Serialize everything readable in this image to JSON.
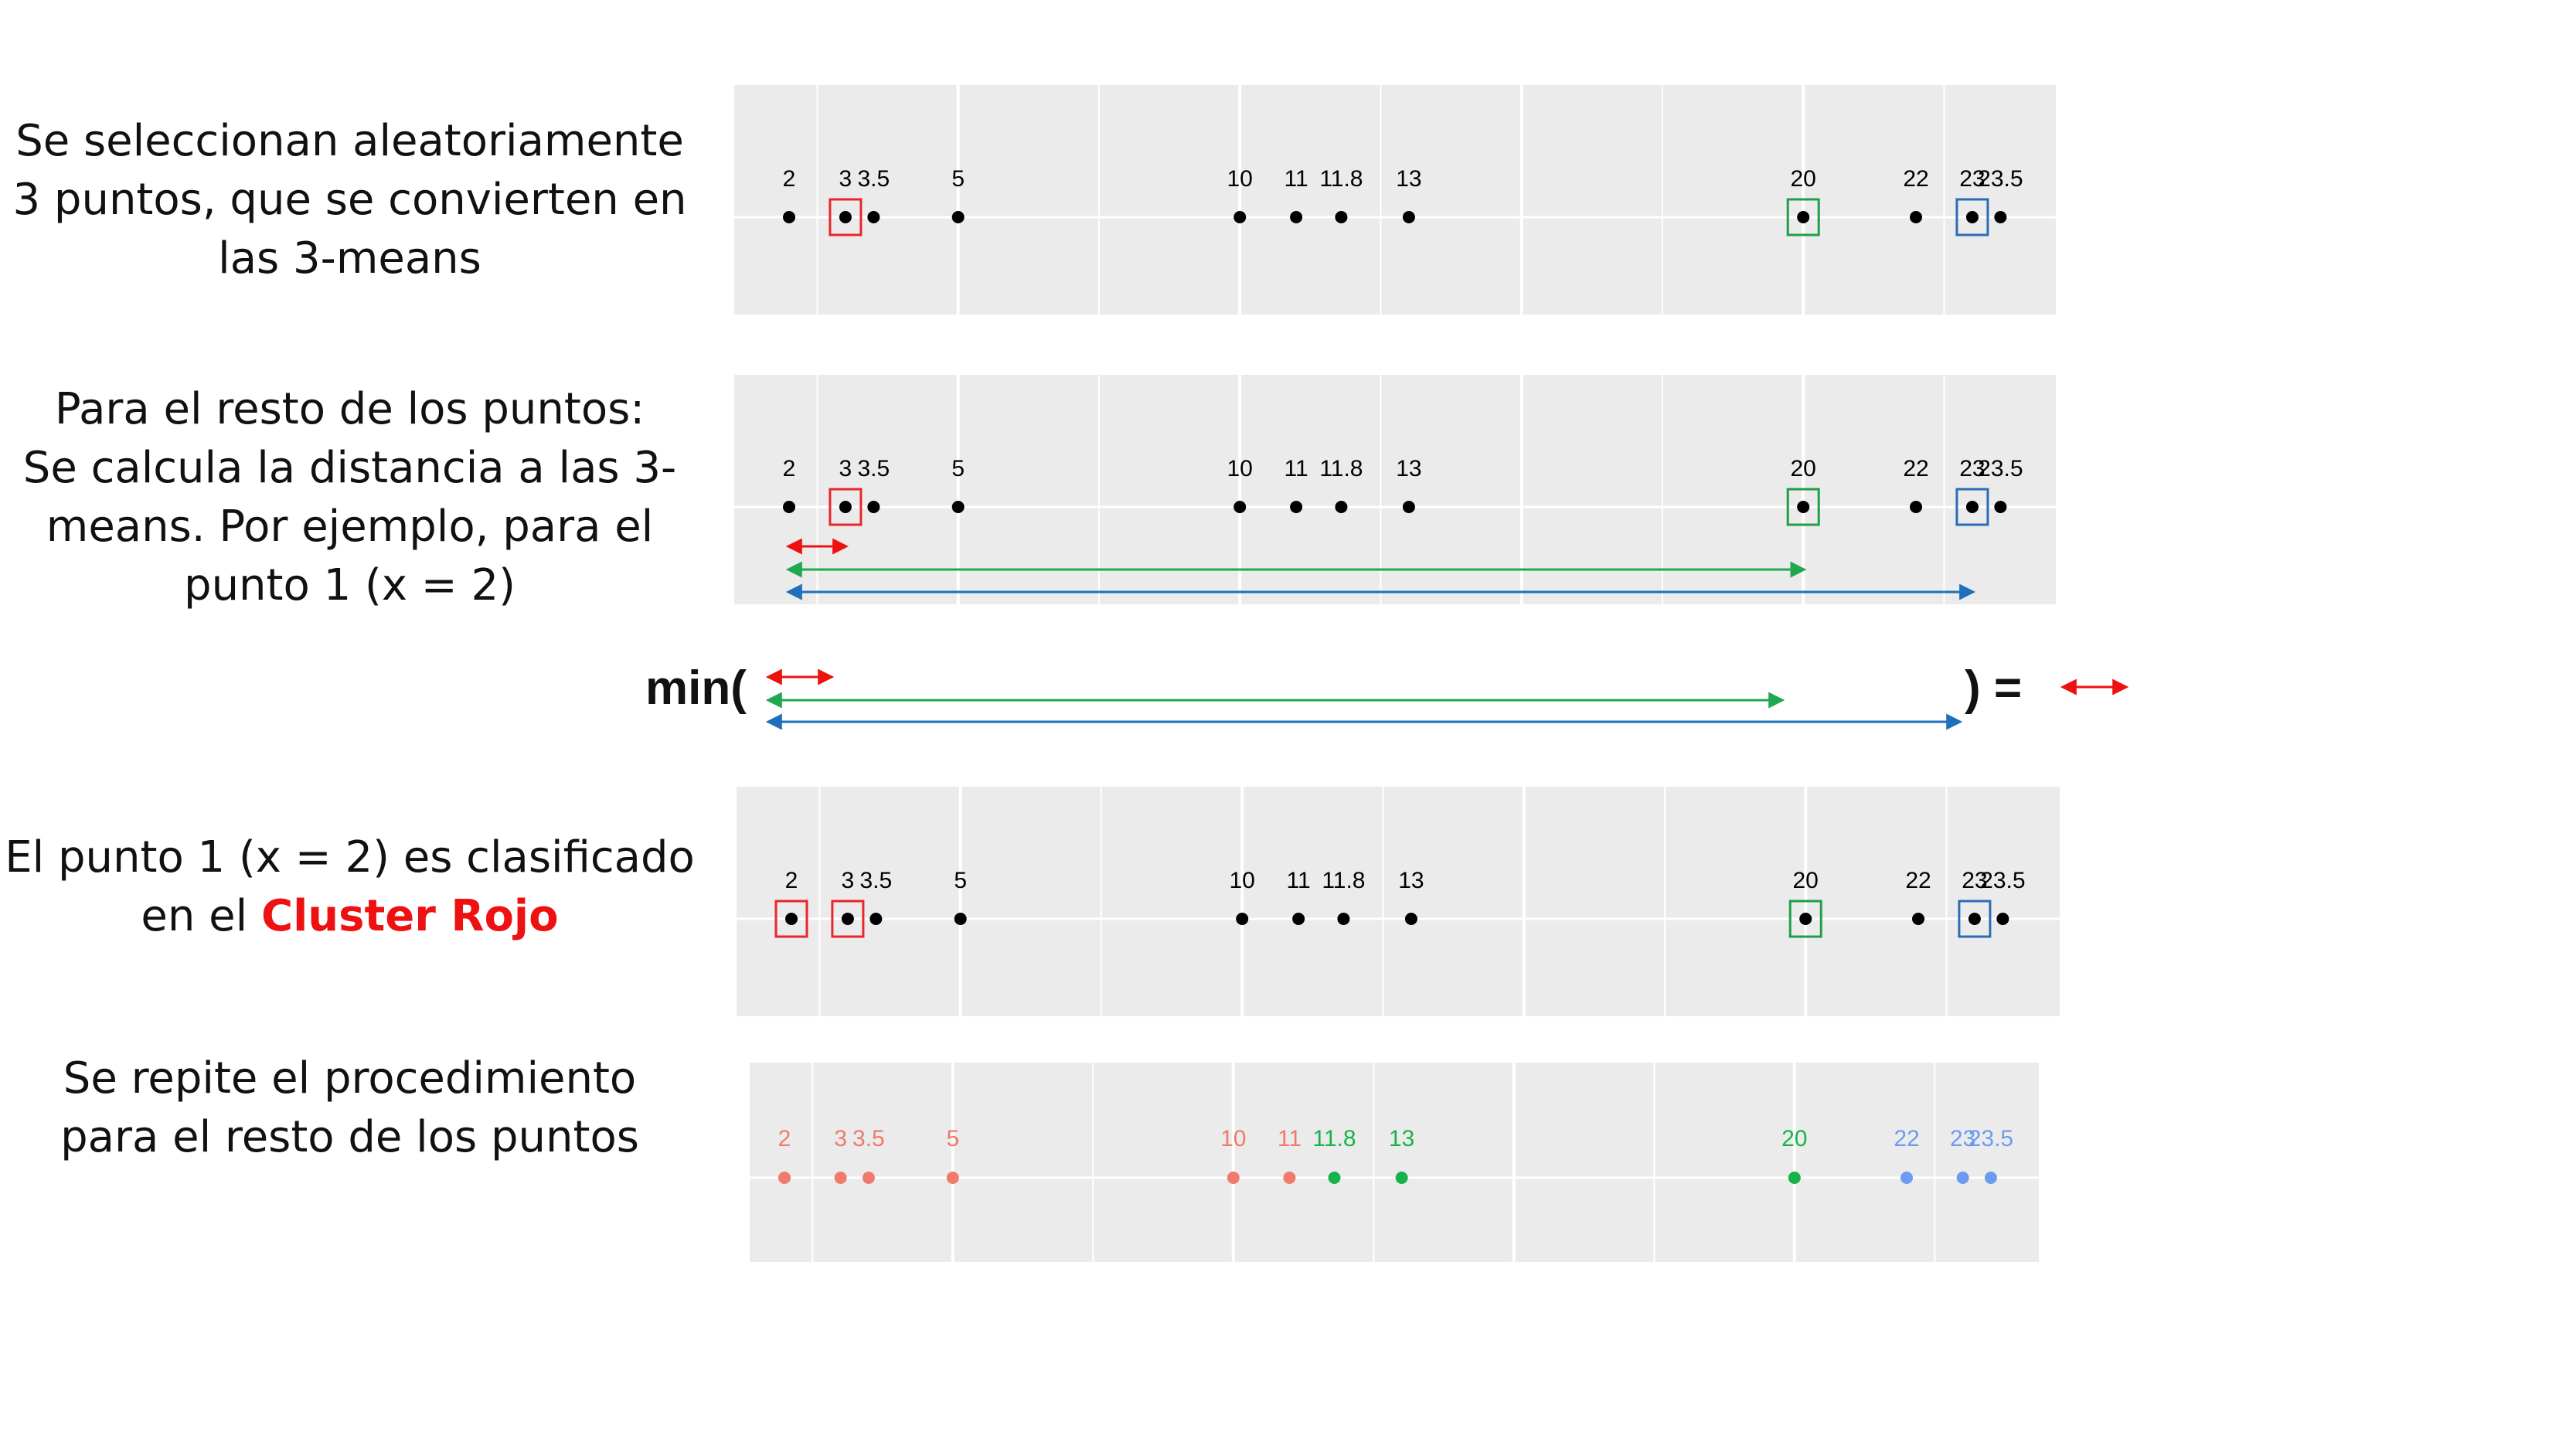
{
  "captions": {
    "step1": [
      "Se seleccionan aleatoriamente",
      "3 puntos, que se convierten en",
      "las 3-means"
    ],
    "step2": [
      "Para el resto de los puntos:",
      "Se calcula la distancia a las 3-",
      "means. Por ejemplo, para el",
      "punto 1 (x = 2)"
    ],
    "step3_line1": "El punto 1 (x = 2) es clasificado",
    "step3_prefix": "en el ",
    "step3_highlight": "Cluster Rojo",
    "step4": [
      "Se repite el procedimiento",
      "para el resto de los puntos"
    ]
  },
  "equation": {
    "min_label": "min(",
    "equals_label": ") ="
  },
  "points": {
    "values": [
      2,
      3,
      3.5,
      5,
      10,
      11,
      11.8,
      13,
      20,
      22,
      23,
      23.5
    ],
    "labels": [
      "2",
      "3",
      "3.5",
      "5",
      "10",
      "11",
      "11.8",
      "13",
      "20",
      "22",
      "23",
      "23.5"
    ]
  },
  "means": [
    {
      "value": 3,
      "color": "#e8262b"
    },
    {
      "value": 20,
      "color": "#1f9e4a"
    },
    {
      "value": 23,
      "color": "#2a6db4"
    }
  ],
  "distance_arrows": [
    {
      "from": 2,
      "to": 3,
      "color": "#ee1111"
    },
    {
      "from": 2,
      "to": 20,
      "color": "#1fa84f"
    },
    {
      "from": 2,
      "to": 23,
      "color": "#1f6fbd"
    }
  ],
  "panel3_boxed": [
    {
      "value": 2,
      "color": "#e8262b"
    },
    {
      "value": 3,
      "color": "#e8262b"
    },
    {
      "value": 20,
      "color": "#1f9e4a"
    },
    {
      "value": 23,
      "color": "#2a6db4"
    }
  ],
  "clusters": {
    "colors": {
      "red": "#f07a6b",
      "green": "#17b34a",
      "blue": "#6b9cf0"
    },
    "assignment": [
      "red",
      "red",
      "red",
      "red",
      "red",
      "red",
      "green",
      "green",
      "green",
      "blue",
      "blue",
      "blue"
    ]
  },
  "colors": {
    "panel_bg": "#ebebeb",
    "grid": "#ffffff",
    "point": "#000000"
  }
}
